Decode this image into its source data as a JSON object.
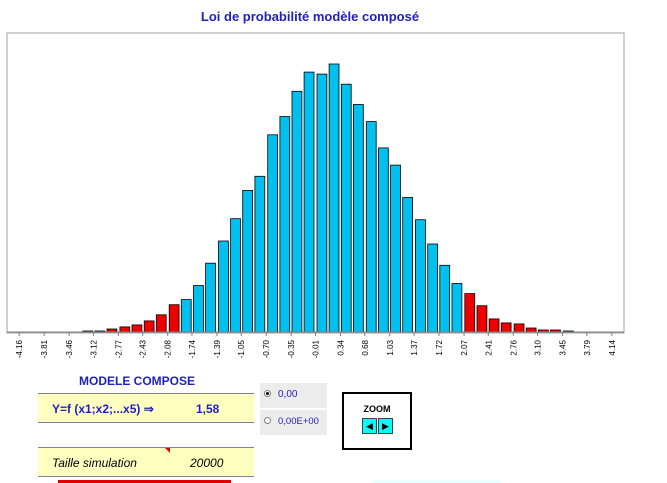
{
  "chart_data": {
    "type": "bar",
    "title": "Loi de probabilité modèle composé",
    "tick_labels": [
      "-4.16",
      "-3.81",
      "-3.46",
      "-3.12",
      "-2.77",
      "-2.43",
      "-2.08",
      "-1.74",
      "-1.39",
      "-1.05",
      "-0.70",
      "-0.35",
      "-0.01",
      "0.34",
      "0.68",
      "1.03",
      "1.37",
      "1.72",
      "2.07",
      "2.41",
      "2.76",
      "3.10",
      "3.45",
      "3.79",
      "4.14"
    ],
    "xlim": [
      -4.33,
      4.31
    ],
    "bar_width": 0.1725,
    "ylim": [
      0,
      265
    ],
    "bars": [
      {
        "x": -3.2,
        "y": 1,
        "tail": false
      },
      {
        "x": -3.03,
        "y": 1,
        "tail": false
      },
      {
        "x": -2.86,
        "y": 3,
        "tail": true
      },
      {
        "x": -2.68,
        "y": 5,
        "tail": true
      },
      {
        "x": -2.51,
        "y": 7,
        "tail": true
      },
      {
        "x": -2.34,
        "y": 11,
        "tail": true
      },
      {
        "x": -2.17,
        "y": 17,
        "tail": true
      },
      {
        "x": -1.99,
        "y": 27,
        "tail": true
      },
      {
        "x": -1.82,
        "y": 32,
        "tail": false
      },
      {
        "x": -1.65,
        "y": 46,
        "tail": false
      },
      {
        "x": -1.48,
        "y": 68,
        "tail": false
      },
      {
        "x": -1.3,
        "y": 90,
        "tail": false
      },
      {
        "x": -1.13,
        "y": 112,
        "tail": false
      },
      {
        "x": -0.96,
        "y": 140,
        "tail": false
      },
      {
        "x": -0.79,
        "y": 154,
        "tail": false
      },
      {
        "x": -0.61,
        "y": 195,
        "tail": false
      },
      {
        "x": -0.44,
        "y": 213,
        "tail": false
      },
      {
        "x": -0.27,
        "y": 238,
        "tail": false
      },
      {
        "x": -0.1,
        "y": 257,
        "tail": false
      },
      {
        "x": 0.08,
        "y": 255,
        "tail": false
      },
      {
        "x": 0.25,
        "y": 265,
        "tail": false
      },
      {
        "x": 0.42,
        "y": 245,
        "tail": false
      },
      {
        "x": 0.59,
        "y": 225,
        "tail": false
      },
      {
        "x": 0.77,
        "y": 208,
        "tail": false
      },
      {
        "x": 0.94,
        "y": 182,
        "tail": false
      },
      {
        "x": 1.11,
        "y": 165,
        "tail": false
      },
      {
        "x": 1.28,
        "y": 133,
        "tail": false
      },
      {
        "x": 1.46,
        "y": 111,
        "tail": false
      },
      {
        "x": 1.63,
        "y": 87,
        "tail": false
      },
      {
        "x": 1.8,
        "y": 66,
        "tail": false
      },
      {
        "x": 1.97,
        "y": 48,
        "tail": false
      },
      {
        "x": 2.15,
        "y": 38,
        "tail": true
      },
      {
        "x": 2.32,
        "y": 26,
        "tail": true
      },
      {
        "x": 2.49,
        "y": 13,
        "tail": true
      },
      {
        "x": 2.66,
        "y": 9,
        "tail": true
      },
      {
        "x": 2.84,
        "y": 8,
        "tail": true
      },
      {
        "x": 3.01,
        "y": 4,
        "tail": true
      },
      {
        "x": 3.18,
        "y": 2,
        "tail": true
      },
      {
        "x": 3.35,
        "y": 2,
        "tail": true
      },
      {
        "x": 3.53,
        "y": 1,
        "tail": false
      }
    ],
    "grid": false,
    "legend": "none"
  },
  "colors": {
    "bar_fill": "#00c0f0",
    "tail_fill": "#ee0000",
    "bar_stroke": "#000000",
    "title_color": "#1f1fbf",
    "panel_bg": "#ffffc0"
  },
  "panel": {
    "title": "MODELE COMPOSE",
    "formula": "Y=f (x1;x2;...x5)  ⇒",
    "formula_value": "1,58",
    "sim_label": "Taille simulation",
    "sim_value": "20000"
  },
  "radio": {
    "option1": "0,00",
    "option2": "0,00E+00",
    "selected": "option1"
  },
  "zoom": {
    "label": "ZOOM",
    "left_icon": "left-arrow-icon",
    "right_icon": "right-arrow-icon"
  }
}
